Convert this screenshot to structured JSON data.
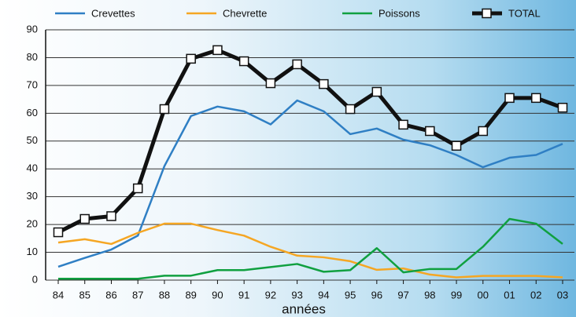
{
  "chart_data": {
    "type": "line",
    "x_label": "années",
    "categories": [
      "84",
      "85",
      "86",
      "87",
      "88",
      "89",
      "90",
      "91",
      "92",
      "93",
      "94",
      "95",
      "96",
      "97",
      "98",
      "99",
      "00",
      "01",
      "02",
      "03"
    ],
    "series": [
      {
        "name": "Crevettes",
        "color": "#2f7fc4",
        "values": [
          4.8,
          8,
          11,
          16,
          41,
          59,
          62.4,
          60.7,
          56,
          64.6,
          60.7,
          52.5,
          54.5,
          50.5,
          48.5,
          45,
          40.6,
          44,
          45,
          49
        ]
      },
      {
        "name": "Chevrette",
        "color": "#f5a623",
        "values": [
          13.5,
          14.7,
          13,
          17,
          20.3,
          20.3,
          18,
          16,
          12,
          8.8,
          8.2,
          6.8,
          3.7,
          4.2,
          2,
          1,
          1.5,
          1.5,
          1.5,
          1
        ]
      },
      {
        "name": "Poissons",
        "color": "#10a040",
        "values": [
          0.5,
          0.5,
          0.5,
          0.5,
          1.6,
          1.6,
          3.6,
          3.6,
          4.7,
          5.8,
          3,
          3.6,
          11.5,
          2.8,
          4,
          4,
          12,
          22,
          20.3,
          13
        ]
      },
      {
        "name": "TOTAL",
        "color": "#111111",
        "values": [
          17.2,
          22,
          23,
          33,
          61.5,
          79.6,
          82.7,
          78.7,
          70.8,
          77.6,
          70.5,
          61.5,
          67.7,
          55.9,
          53.6,
          48.3,
          53.6,
          65.5,
          65.5,
          62
        ]
      }
    ],
    "ylim": [
      0,
      90
    ],
    "yticks": [
      0,
      10,
      20,
      30,
      40,
      50,
      60,
      70,
      80,
      90
    ],
    "grid": true
  }
}
